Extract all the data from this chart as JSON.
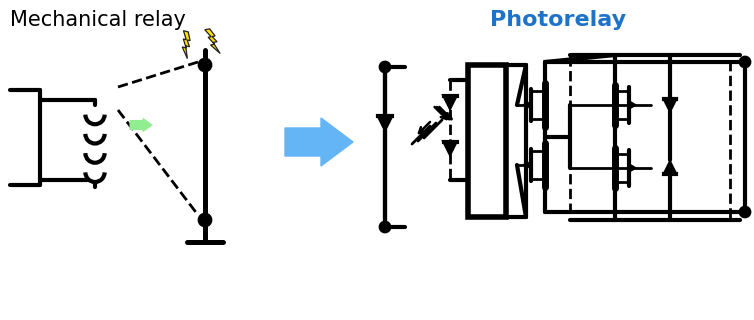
{
  "title_left": "Mechanical relay",
  "title_right": "Photorelay",
  "title_right_color": "#1E72C8",
  "title_left_color": "#000000",
  "bg_color": "#ffffff",
  "arrow_color": "#64B5F6",
  "lightning_color": "#FFE000",
  "lightning_outline": "#222222",
  "green_fill": "#90EE90",
  "green_edge": "#5aaa5a",
  "line_color": "#000000",
  "line_width": 2.0,
  "fig_width": 7.54,
  "fig_height": 3.2,
  "dpi": 100
}
